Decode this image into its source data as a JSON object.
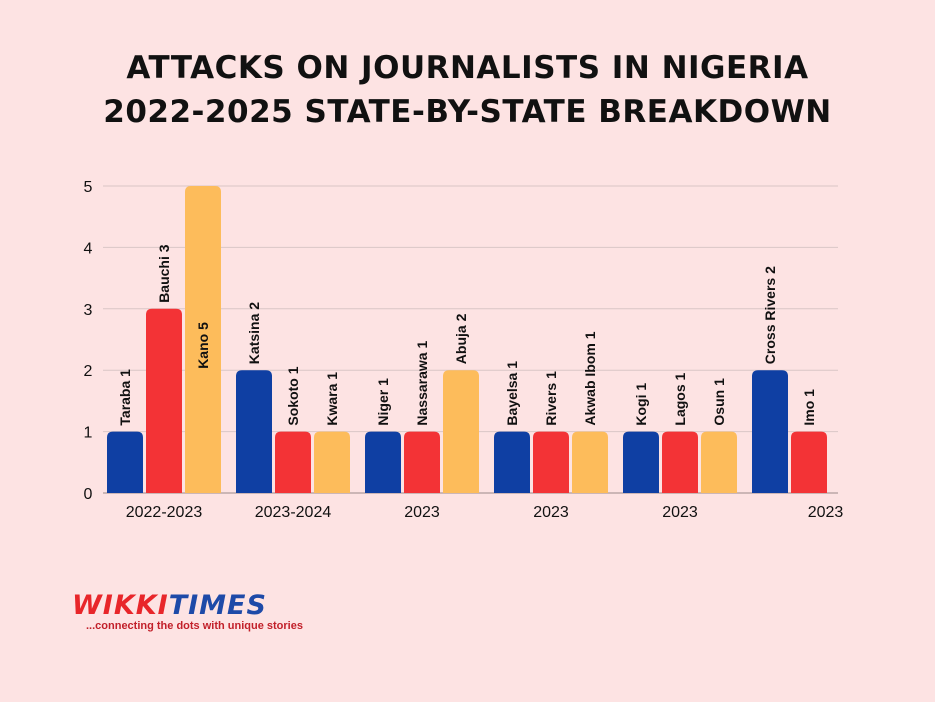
{
  "title": {
    "line1": "ATTACKS ON JOURNALISTS IN NIGERIA",
    "line2": "2022-2025 STATE-BY-STATE BREAKDOWN"
  },
  "chart_data": {
    "type": "bar",
    "title": "ATTACKS ON JOURNALISTS IN NIGERIA 2022-2025 STATE-BY-STATE BREAKDOWN",
    "xlabel": "",
    "ylabel": "",
    "ylim": [
      0,
      5
    ],
    "yticks": [
      "0",
      "1",
      "2",
      "3",
      "4",
      "5"
    ],
    "grid": true,
    "colors": {
      "blue": "#0f3fa3",
      "red": "#f33336",
      "yellow": "#fdbc5b"
    },
    "groups": [
      {
        "label": "2022-2023",
        "bars": [
          {
            "label": "Taraba 1",
            "value": 1,
            "color": "blue"
          },
          {
            "label": "Bauchi 3",
            "value": 3,
            "color": "red"
          },
          {
            "label": "Kano 5",
            "value": 5,
            "color": "yellow"
          }
        ]
      },
      {
        "label": "2023-2024",
        "bars": [
          {
            "label": "Katsina 2",
            "value": 2,
            "color": "blue"
          },
          {
            "label": "Sokoto 1",
            "value": 1,
            "color": "red"
          },
          {
            "label": "Kwara 1",
            "value": 1,
            "color": "yellow"
          }
        ]
      },
      {
        "label": "2023",
        "bars": [
          {
            "label": "Niger 1",
            "value": 1,
            "color": "blue"
          },
          {
            "label": "Nassarawa 1",
            "value": 1,
            "color": "red"
          },
          {
            "label": "Abuja 2",
            "value": 2,
            "color": "yellow"
          }
        ]
      },
      {
        "label": "2023",
        "bars": [
          {
            "label": "Bayelsa 1",
            "value": 1,
            "color": "blue"
          },
          {
            "label": "Rivers 1",
            "value": 1,
            "color": "red"
          },
          {
            "label": "Akwab Ibom 1",
            "value": 1,
            "color": "yellow"
          }
        ]
      },
      {
        "label": "2023",
        "bars": [
          {
            "label": "Kogi 1",
            "value": 1,
            "color": "blue"
          },
          {
            "label": "Lagos 1",
            "value": 1,
            "color": "red"
          },
          {
            "label": "Osun 1",
            "value": 1,
            "color": "yellow"
          }
        ]
      },
      {
        "label": "2023",
        "bars": [
          {
            "label": "Cross Rivers 2",
            "value": 2,
            "color": "blue"
          },
          {
            "label": "Imo 1",
            "value": 1,
            "color": "red"
          }
        ]
      }
    ]
  },
  "logo": {
    "word_a": "WIKKI",
    "word_b": "TIMES",
    "tagline": "...connecting the dots with unique stories"
  }
}
